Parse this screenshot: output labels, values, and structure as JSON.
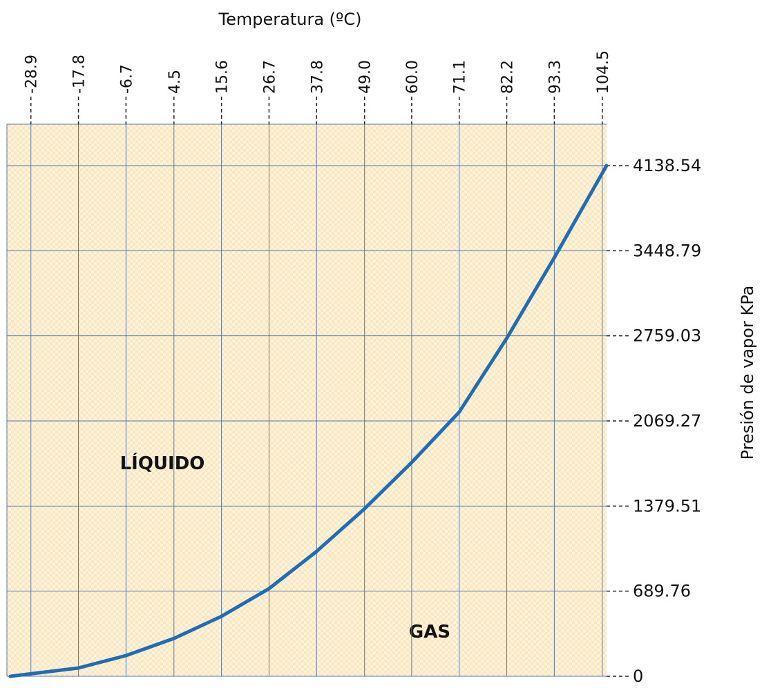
{
  "chart_data": {
    "type": "line",
    "title": "Temperatura (ºC)",
    "y_label": "Presión de vapor KPa",
    "annotations": [
      "LÍQUIDO",
      "GAS"
    ],
    "x": [
      -33.7,
      -17.8,
      -6.7,
      4.5,
      15.6,
      26.7,
      37.8,
      49.0,
      60.0,
      71.1,
      82.2,
      93.3,
      105.5
    ],
    "values": [
      0,
      67,
      168,
      307,
      486,
      710,
      1012,
      1358,
      1733,
      2141,
      2739,
      3393,
      4138.54
    ],
    "color": "#1f6db5",
    "xlim": [
      -34.5,
      105.5
    ],
    "xticks": [
      -28.9,
      -17.8,
      -6.7,
      4.5,
      15.6,
      26.7,
      37.8,
      {
        "value": 49.0,
        "label": "49.0"
      },
      {
        "value": 60.0,
        "label": "60.0"
      },
      71.1,
      82.2,
      93.3,
      104.5
    ],
    "ylim": [
      0,
      4474
    ],
    "yticks": [
      0,
      689.76,
      1379.51,
      2069.27,
      2759.03,
      3448.79,
      4138.54
    ],
    "grid": true
  }
}
